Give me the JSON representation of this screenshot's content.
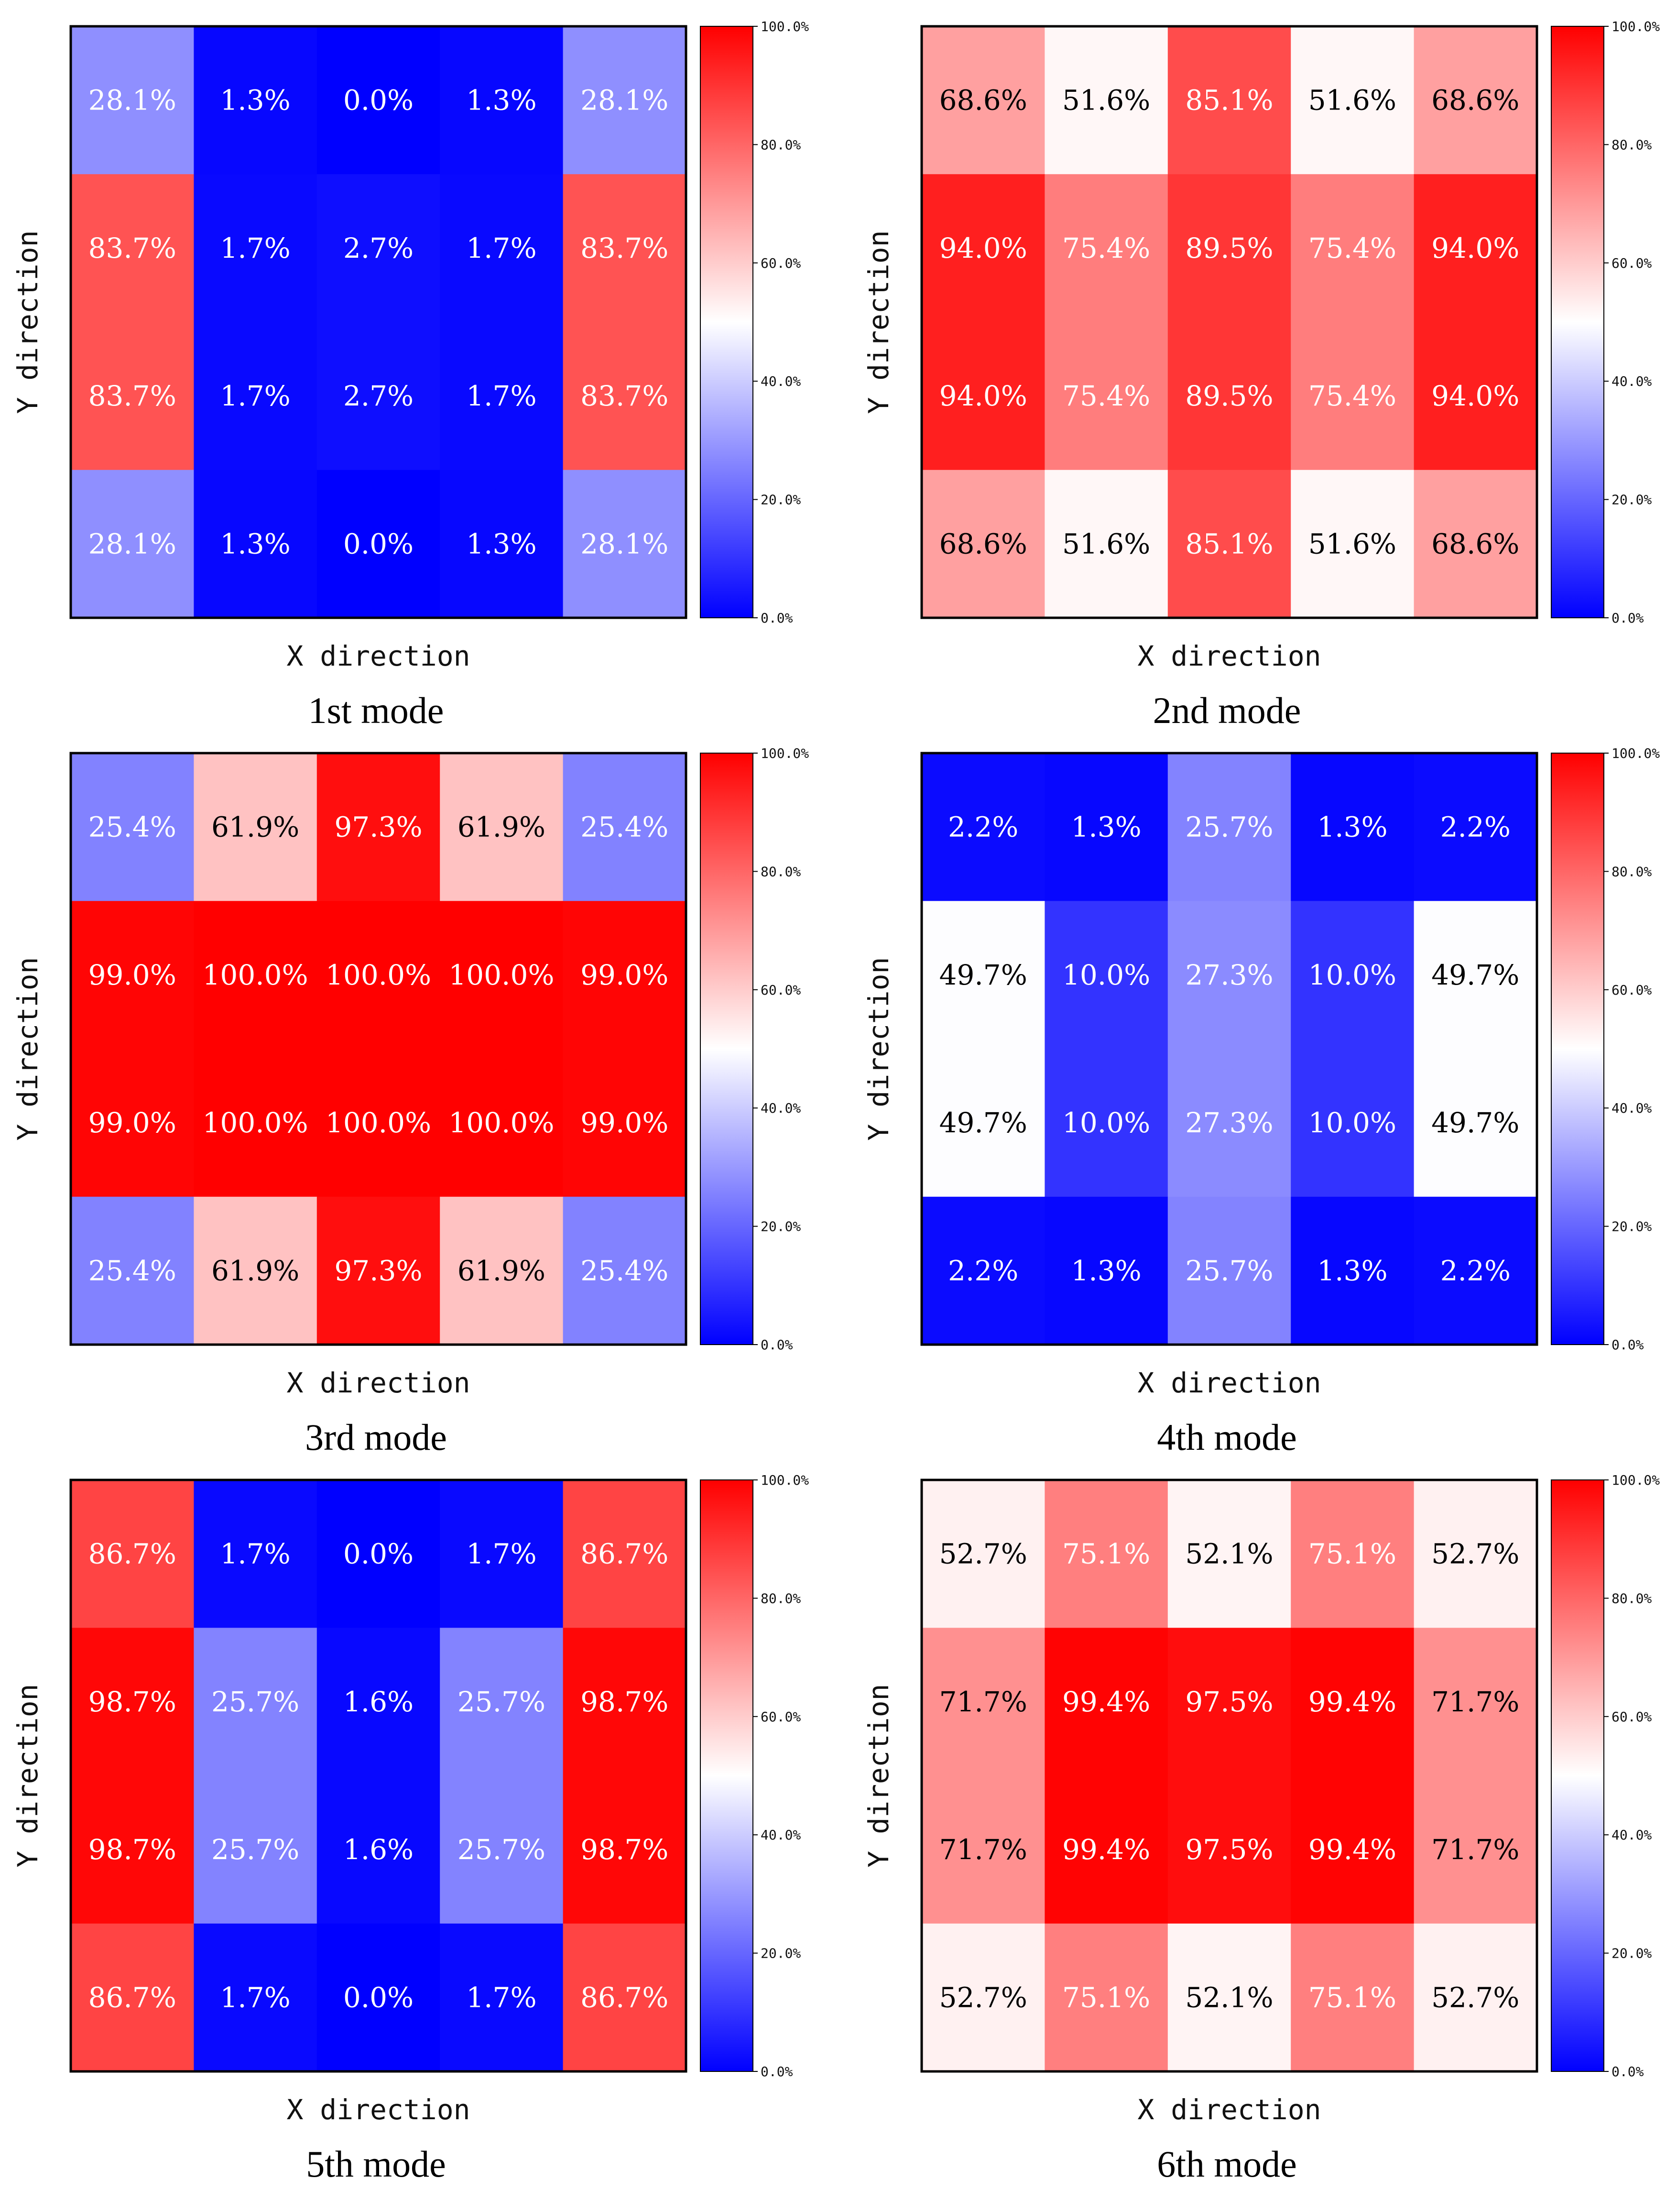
{
  "figure_title": "",
  "colors": {
    "low": "#0000ff",
    "mid": "#ffffff",
    "high": "#ff0000",
    "text_light": "#ffffff",
    "text_dark": "#000000",
    "border": "#000000"
  },
  "colorbar_ticks": [
    "0.0%",
    "20.0%",
    "40.0%",
    "60.0%",
    "80.0%",
    "100.0%"
  ],
  "chart_data": [
    {
      "type": "heatmap",
      "title": "1st mode",
      "xlabel": "X direction",
      "ylabel": "Y direction",
      "value_range": [
        0,
        100
      ],
      "rows": [
        [
          28.1,
          1.3,
          0.0,
          1.3,
          28.1
        ],
        [
          83.7,
          1.7,
          2.7,
          1.7,
          83.7
        ],
        [
          83.7,
          1.7,
          2.7,
          1.7,
          83.7
        ],
        [
          28.1,
          1.3,
          0.0,
          1.3,
          28.1
        ]
      ],
      "labels": [
        [
          "28.1%",
          "1.3%",
          "0.0%",
          "1.3%",
          "28.1%"
        ],
        [
          "83.7%",
          "1.7%",
          "2.7%",
          "1.7%",
          "83.7%"
        ],
        [
          "83.7%",
          "1.7%",
          "2.7%",
          "1.7%",
          "83.7%"
        ],
        [
          "28.1%",
          "1.3%",
          "0.0%",
          "1.3%",
          "28.1%"
        ]
      ]
    },
    {
      "type": "heatmap",
      "title": "2nd mode",
      "xlabel": "X direction",
      "ylabel": "Y direction",
      "value_range": [
        0,
        100
      ],
      "rows": [
        [
          68.6,
          51.6,
          85.1,
          51.6,
          68.6
        ],
        [
          94.0,
          75.4,
          89.5,
          75.4,
          94.0
        ],
        [
          94.0,
          75.4,
          89.5,
          75.4,
          94.0
        ],
        [
          68.6,
          51.6,
          85.1,
          51.6,
          68.6
        ]
      ],
      "labels": [
        [
          "68.6%",
          "51.6%",
          "85.1%",
          "51.6%",
          "68.6%"
        ],
        [
          "94.0%",
          "75.4%",
          "89.5%",
          "75.4%",
          "94.0%"
        ],
        [
          "94.0%",
          "75.4%",
          "89.5%",
          "75.4%",
          "94.0%"
        ],
        [
          "68.6%",
          "51.6%",
          "85.1%",
          "51.6%",
          "68.6%"
        ]
      ]
    },
    {
      "type": "heatmap",
      "title": "3rd mode",
      "xlabel": "X direction",
      "ylabel": "Y direction",
      "value_range": [
        0,
        100
      ],
      "rows": [
        [
          25.4,
          61.9,
          97.3,
          61.9,
          25.4
        ],
        [
          99.0,
          100.0,
          100.0,
          100.0,
          99.0
        ],
        [
          99.0,
          100.0,
          100.0,
          100.0,
          99.0
        ],
        [
          25.4,
          61.9,
          97.3,
          61.9,
          25.4
        ]
      ],
      "labels": [
        [
          "25.4%",
          "61.9%",
          "97.3%",
          "61.9%",
          "25.4%"
        ],
        [
          "99.0%",
          "100.0%",
          "100.0%",
          "100.0%",
          "99.0%"
        ],
        [
          "99.0%",
          "100.0%",
          "100.0%",
          "100.0%",
          "99.0%"
        ],
        [
          "25.4%",
          "61.9%",
          "97.3%",
          "61.9%",
          "25.4%"
        ]
      ]
    },
    {
      "type": "heatmap",
      "title": "4th mode",
      "xlabel": "X direction",
      "ylabel": "Y direction",
      "value_range": [
        0,
        100
      ],
      "rows": [
        [
          2.2,
          1.3,
          25.7,
          1.3,
          2.2
        ],
        [
          49.7,
          10.0,
          27.3,
          10.0,
          49.7
        ],
        [
          49.7,
          10.0,
          27.3,
          10.0,
          49.7
        ],
        [
          2.2,
          1.3,
          25.7,
          1.3,
          2.2
        ]
      ],
      "labels": [
        [
          "2.2%",
          "1.3%",
          "25.7%",
          "1.3%",
          "2.2%"
        ],
        [
          "49.7%",
          "10.0%",
          "27.3%",
          "10.0%",
          "49.7%"
        ],
        [
          "49.7%",
          "10.0%",
          "27.3%",
          "10.0%",
          "49.7%"
        ],
        [
          "2.2%",
          "1.3%",
          "25.7%",
          "1.3%",
          "2.2%"
        ]
      ]
    },
    {
      "type": "heatmap",
      "title": "5th mode",
      "xlabel": "X direction",
      "ylabel": "Y direction",
      "value_range": [
        0,
        100
      ],
      "rows": [
        [
          86.7,
          1.7,
          0.0,
          1.7,
          86.7
        ],
        [
          98.7,
          25.7,
          1.6,
          25.7,
          98.7
        ],
        [
          98.7,
          25.7,
          1.6,
          25.7,
          98.7
        ],
        [
          86.7,
          1.7,
          0.0,
          1.7,
          86.7
        ]
      ],
      "labels": [
        [
          "86.7%",
          "1.7%",
          "0.0%",
          "1.7%",
          "86.7%"
        ],
        [
          "98.7%",
          "25.7%",
          "1.6%",
          "25.7%",
          "98.7%"
        ],
        [
          "98.7%",
          "25.7%",
          "1.6%",
          "25.7%",
          "98.7%"
        ],
        [
          "86.7%",
          "1.7%",
          "0.0%",
          "1.7%",
          "86.7%"
        ]
      ]
    },
    {
      "type": "heatmap",
      "title": "6th mode",
      "xlabel": "X direction",
      "ylabel": "Y direction",
      "value_range": [
        0,
        100
      ],
      "rows": [
        [
          52.7,
          75.1,
          52.1,
          75.1,
          52.7
        ],
        [
          71.7,
          99.4,
          97.5,
          99.4,
          71.7
        ],
        [
          71.7,
          99.4,
          97.5,
          99.4,
          71.7
        ],
        [
          52.7,
          75.1,
          52.1,
          75.1,
          52.7
        ]
      ],
      "labels": [
        [
          "52.7%",
          "75.1%",
          "52.1%",
          "75.1%",
          "52.7%"
        ],
        [
          "71.7%",
          "99.4%",
          "97.5%",
          "99.4%",
          "71.7%"
        ],
        [
          "71.7%",
          "99.4%",
          "97.5%",
          "99.4%",
          "71.7%"
        ],
        [
          "52.7%",
          "75.1%",
          "52.1%",
          "75.1%",
          "52.7%"
        ]
      ]
    }
  ]
}
